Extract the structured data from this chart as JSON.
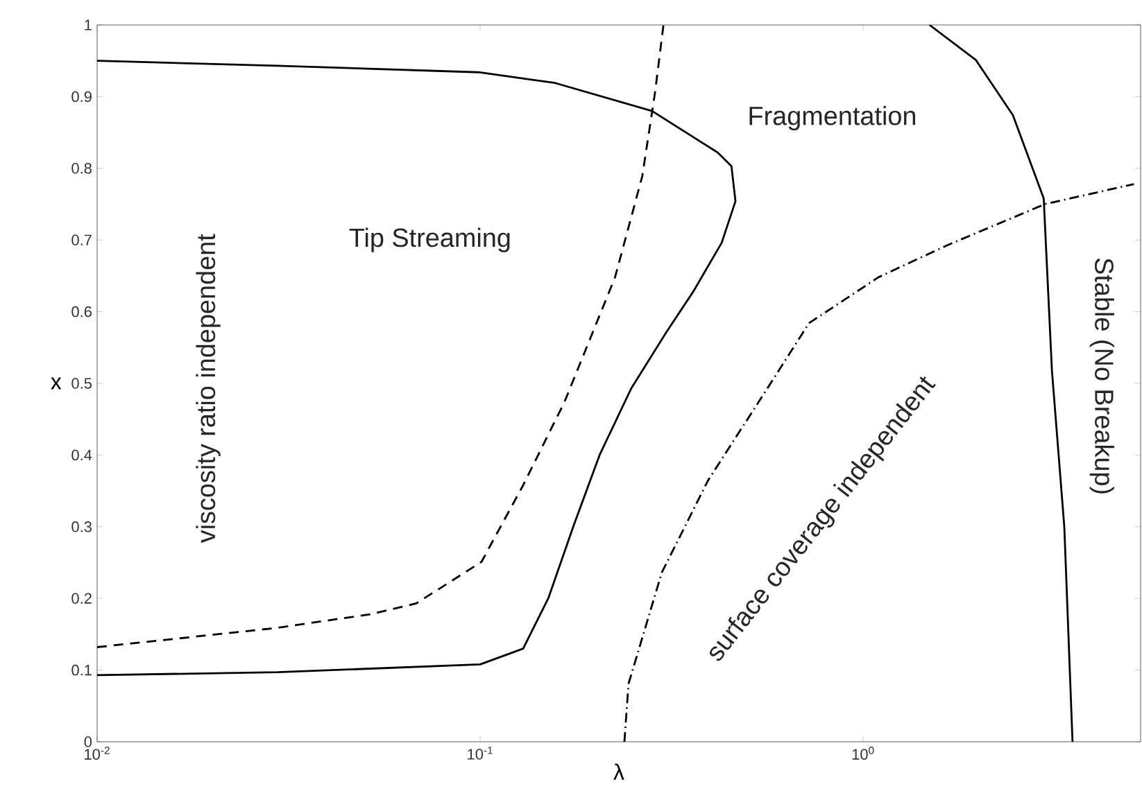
{
  "chart_data": {
    "type": "line",
    "xlabel": "λ",
    "ylabel": "x",
    "log": "x",
    "xlim": [
      0.01,
      5.3
    ],
    "ylim": [
      0,
      1
    ],
    "xticks": [
      {
        "value": 0.01,
        "label": "10$^{-2}$"
      },
      {
        "value": 0.1,
        "label": "10$^{-1}$"
      },
      {
        "value": 1,
        "label": "10$^{0}$"
      }
    ],
    "yticks": [
      0,
      0.1,
      0.2,
      0.3,
      0.4,
      0.5,
      0.6,
      0.7,
      0.8,
      0.9,
      1
    ],
    "grid": false,
    "marker": "none",
    "series": [
      {
        "color": "#000000",
        "line_style": "solid",
        "x": [
          0.01,
          0.0296,
          0.1,
          0.1295,
          0.1506,
          0.175,
          0.205,
          0.248,
          0.306,
          0.361,
          0.427,
          0.464,
          0.453,
          0.417,
          0.281,
          0.157,
          0.099,
          0.0296,
          0.01
        ],
        "values": [
          0.093,
          0.097,
          0.108,
          0.13,
          0.2,
          0.3,
          0.4,
          0.493,
          0.571,
          0.629,
          0.696,
          0.754,
          0.803,
          0.822,
          0.88,
          0.919,
          0.934,
          0.943,
          0.95
        ]
      },
      {
        "color": "#000000",
        "line_style": "dashed",
        "x": [
          0.01,
          0.0296,
          0.0518,
          0.0681,
          0.1008,
          0.1295,
          0.166,
          0.225,
          0.265,
          0.286,
          0.301
        ],
        "values": [
          0.132,
          0.159,
          0.178,
          0.193,
          0.251,
          0.358,
          0.474,
          0.648,
          0.789,
          0.905,
          1.0
        ]
      },
      {
        "color": "#000000",
        "line_style": "dashdot",
        "x": [
          0.238,
          0.244,
          0.298,
          0.393,
          0.562,
          0.722,
          1.096,
          1.663,
          2.98,
          5.09
        ],
        "values": [
          0,
          0.081,
          0.236,
          0.364,
          0.493,
          0.584,
          0.648,
          0.693,
          0.75,
          0.778
        ]
      },
      {
        "color": "#000000",
        "line_style": "solid",
        "x": [
          1.49,
          1.97,
          2.46,
          2.96,
          3.11,
          3.35,
          3.52
        ],
        "values": [
          1.0,
          0.951,
          0.874,
          0.758,
          0.518,
          0.3,
          0
        ]
      }
    ],
    "annotations": [
      "Tip Streaming",
      "Fragmentation",
      "viscosity ratio independent",
      "surface coverage independent",
      "Stable (No Breakup)"
    ]
  }
}
